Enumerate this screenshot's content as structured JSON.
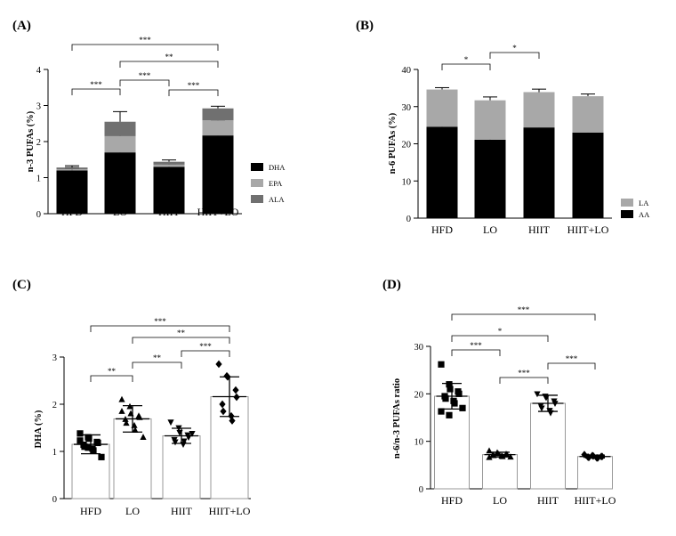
{
  "chart_data": [
    {
      "panel": "(A)",
      "type": "bar",
      "stacked": true,
      "ylabel": "n-3 PUFAs (%)",
      "ylim": [
        0,
        4
      ],
      "yticks": [
        0,
        1,
        2,
        3,
        4
      ],
      "categories": [
        "HFD",
        "LO",
        "HIIT",
        "HIIT+LO"
      ],
      "series": [
        {
          "name": "DHA",
          "color": "#000000",
          "values": [
            1.2,
            1.7,
            1.3,
            2.17
          ],
          "err": [
            0.08,
            0.27,
            0.12,
            0.42
          ]
        },
        {
          "name": "EPA",
          "color": "#a8a8a8",
          "values": [
            0.03,
            0.45,
            0.06,
            0.42
          ],
          "err": [
            0.02,
            0.08,
            0.02,
            0.06
          ]
        },
        {
          "name": "ALA",
          "color": "#707070",
          "values": [
            0.05,
            0.4,
            0.08,
            0.33
          ],
          "err": [
            0.05,
            0.28,
            0.05,
            0.06
          ]
        }
      ],
      "legend": "right",
      "significance": [
        {
          "from": 0,
          "to": 1,
          "label": "***"
        },
        {
          "from": 1,
          "to": 2,
          "label": "***"
        },
        {
          "from": 2,
          "to": 3,
          "label": "***"
        },
        {
          "from": 1,
          "to": 3,
          "label": "**"
        },
        {
          "from": 0,
          "to": 3,
          "label": "***"
        }
      ]
    },
    {
      "panel": "(B)",
      "type": "bar",
      "stacked": true,
      "ylabel": "n-6 PUFAs (%)",
      "ylim": [
        0,
        40
      ],
      "yticks": [
        0,
        10,
        20,
        30,
        40
      ],
      "categories": [
        "HFD",
        "LO",
        "HIIT",
        "HIIT+LO"
      ],
      "series": [
        {
          "name": "AA",
          "color": "#000000",
          "values": [
            24.6,
            21.1,
            24.4,
            23.0
          ],
          "err": [
            2.5,
            3.5,
            2.2,
            0.6
          ]
        },
        {
          "name": "LA",
          "color": "#a8a8a8",
          "values": [
            10.0,
            10.6,
            9.5,
            9.8
          ],
          "err": [
            0.5,
            0.9,
            0.8,
            0.6
          ]
        }
      ],
      "legend": "right",
      "significance": [
        {
          "from": 0,
          "to": 1,
          "label": "*"
        },
        {
          "from": 1,
          "to": 2,
          "label": "*"
        }
      ]
    },
    {
      "panel": "(C)",
      "type": "bar",
      "subtype": "bar-with-points",
      "ylabel": "DHA (%)",
      "ylim": [
        0,
        3
      ],
      "yticks": [
        0,
        1,
        2,
        3
      ],
      "categories": [
        "HFD",
        "LO",
        "HIIT",
        "HIIT+LO"
      ],
      "values": [
        1.15,
        1.69,
        1.33,
        2.16
      ],
      "err": [
        0.2,
        0.28,
        0.16,
        0.42
      ],
      "markers": [
        "square",
        "triangle",
        "triangle-down",
        "diamond"
      ],
      "points": [
        [
          1.38,
          1.3,
          1.27,
          1.2,
          1.18,
          1.14,
          1.1,
          1.06,
          1.02,
          0.88,
          1.23,
          1.08
        ],
        [
          2.1,
          1.95,
          1.8,
          1.75,
          1.72,
          1.68,
          1.6,
          1.55,
          1.45,
          1.3,
          1.85
        ],
        [
          1.62,
          1.5,
          1.4,
          1.35,
          1.3,
          1.25,
          1.2,
          1.15,
          1.22,
          1.38
        ],
        [
          2.85,
          2.6,
          2.58,
          2.3,
          2.15,
          2.0,
          1.85,
          1.75,
          1.65
        ]
      ],
      "significance": [
        {
          "from": 0,
          "to": 1,
          "label": "**"
        },
        {
          "from": 1,
          "to": 2,
          "label": "**"
        },
        {
          "from": 2,
          "to": 3,
          "label": "***"
        },
        {
          "from": 1,
          "to": 3,
          "label": "**"
        },
        {
          "from": 0,
          "to": 3,
          "label": "***"
        }
      ]
    },
    {
      "panel": "(D)",
      "type": "bar",
      "subtype": "bar-with-points",
      "ylabel": "n-6/n-3 PUFAs ratio",
      "ylim": [
        0,
        30
      ],
      "yticks": [
        0,
        10,
        20,
        30
      ],
      "categories": [
        "HFD",
        "LO",
        "HIIT",
        "HIIT+LO"
      ],
      "values": [
        19.5,
        7.2,
        18.0,
        6.8
      ],
      "err": [
        2.7,
        0.5,
        1.7,
        0.3
      ],
      "markers": [
        "square",
        "triangle",
        "triangle-down",
        "diamond"
      ],
      "points": [
        [
          26.2,
          22.0,
          21.0,
          20.5,
          20.0,
          19.5,
          19.0,
          18.5,
          18.0,
          17.0,
          16.3,
          15.5
        ],
        [
          8.0,
          7.6,
          7.4,
          7.3,
          7.2,
          7.1,
          7.0,
          6.9,
          6.8,
          6.7,
          6.6
        ],
        [
          20.0,
          19.5,
          19.2,
          18.5,
          18.0,
          17.5,
          17.0,
          16.5,
          16.0
        ],
        [
          7.2,
          7.0,
          6.9,
          6.8,
          6.8,
          6.7,
          6.6,
          6.5,
          6.5
        ]
      ],
      "significance": [
        {
          "from": 0,
          "to": 1,
          "label": "***"
        },
        {
          "from": 0,
          "to": 2,
          "label": "*"
        },
        {
          "from": 1,
          "to": 2,
          "label": "***"
        },
        {
          "from": 2,
          "to": 3,
          "label": "***"
        },
        {
          "from": 0,
          "to": 3,
          "label": "***"
        }
      ]
    }
  ]
}
